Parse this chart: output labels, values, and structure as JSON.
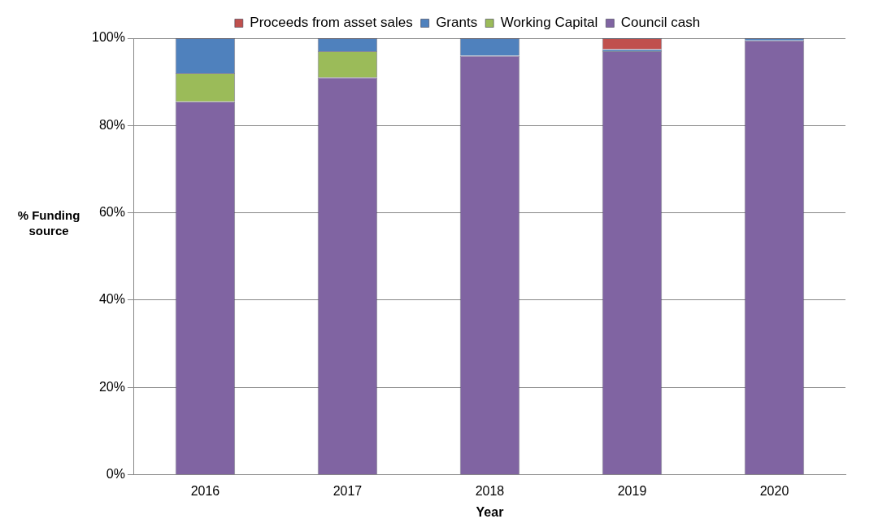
{
  "chart_data": {
    "type": "bar",
    "stacked": true,
    "xlabel": "Year",
    "ylabel": "% Funding source",
    "categories": [
      "2016",
      "2017",
      "2018",
      "2019",
      "2020"
    ],
    "series": [
      {
        "name": "Council cash",
        "color": "#8064a2",
        "values": [
          85.5,
          91,
          96,
          97,
          99.5
        ]
      },
      {
        "name": "Working Capital",
        "color": "#9bbb59",
        "values": [
          6.5,
          6,
          0,
          0,
          0
        ]
      },
      {
        "name": "Grants",
        "color": "#4f81bd",
        "values": [
          8,
          3,
          4,
          0.5,
          0.5
        ]
      },
      {
        "name": "Proceeds from asset sales",
        "color": "#c0504d",
        "values": [
          0,
          0,
          0,
          2.5,
          0
        ]
      }
    ],
    "ylim": [
      0,
      100
    ],
    "yticks": [
      {
        "value": 0,
        "label": "0%"
      },
      {
        "value": 20,
        "label": "20%"
      },
      {
        "value": 40,
        "label": "40%"
      },
      {
        "value": 60,
        "label": "60%"
      },
      {
        "value": 80,
        "label": "80%"
      },
      {
        "value": 100,
        "label": "100%"
      }
    ],
    "grid": "y",
    "legend": "top"
  }
}
